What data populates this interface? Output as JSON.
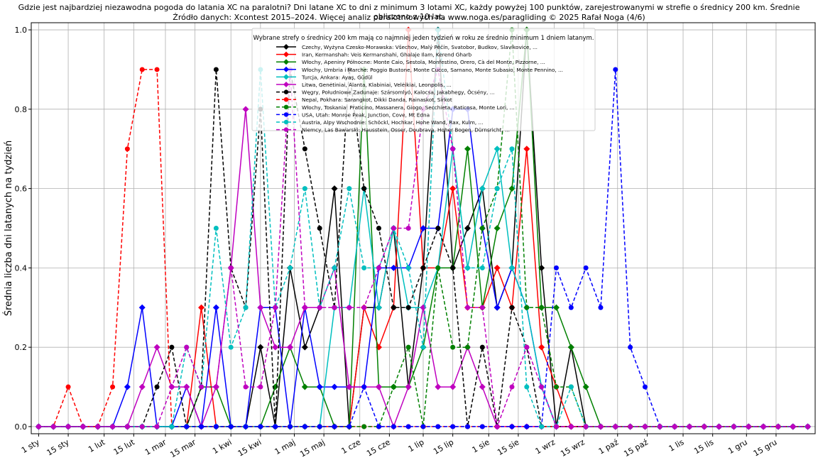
{
  "title_line1": "Gdzie jest najbardziej niezawodna pogoda do latania XC na paralotni? Dni latane XC to dni z minimum 3 lotami XC, każdy powyżej 100 punktów, zarejestrowanymi w strefie o średnicy 200 km. Średnie obliczono z 10 lat.",
  "title_line2": "Źródło danych: Xcontest 2015–2024. Więcej analiz paralotniowych na www.noga.es/paragliding © 2025 Rafał Noga (4/6)",
  "chart_data": {
    "type": "line",
    "ylabel": "Średnia liczba dni latanych na tydzień",
    "xlabel": "",
    "ylim": [
      0,
      1.0
    ],
    "yticks": [
      "0.0",
      "0.2",
      "0.4",
      "0.6",
      "0.8",
      "1.0"
    ],
    "grid": true,
    "legend_title": "Wybrane strefy o średnicy 200 km mają co najmniej jeden tydzień w roku ze średnio minimum 1 dniem latanym.",
    "legend_position": "top-center",
    "xtick_labels": [
      "1 sty",
      "15 sty",
      "1 lut",
      "15 lut",
      "1 mar",
      "15 mar",
      "1 kwi",
      "15 kwi",
      "1 maj",
      "15 maj",
      "1 cze",
      "15 cze",
      "1 lip",
      "15 lip",
      "1 sie",
      "15 sie",
      "1 wrz",
      "15 wrz",
      "1 paź",
      "15 paź",
      "1 lis",
      "15 lis",
      "1 gru",
      "15 gru"
    ],
    "x_weeks": [
      1,
      2,
      3,
      4,
      5,
      6,
      7,
      8,
      9,
      10,
      11,
      12,
      13,
      14,
      15,
      16,
      17,
      18,
      19,
      20,
      21,
      22,
      23,
      24,
      25,
      26,
      27,
      28,
      29,
      30,
      31,
      32,
      33,
      34,
      35,
      36,
      37,
      38,
      39,
      40,
      41,
      42,
      43,
      44,
      45,
      46,
      47,
      48,
      49,
      50,
      51,
      52,
      53
    ],
    "series": [
      {
        "name": "Czechy, Wyżyna Czesko-Morawska: Všechov, Malý Pěčín, Svatobor, Budkov, Slavíkovice, ...",
        "color": "#000000",
        "dash": false,
        "marker": "diamond",
        "values": [
          0,
          0,
          0,
          0,
          0,
          0,
          0,
          0,
          0,
          0,
          0,
          0,
          0,
          0,
          0,
          0.2,
          0,
          0.4,
          0.2,
          0.3,
          0.6,
          0,
          0.3,
          0.3,
          0.5,
          0.1,
          0.4,
          1.0,
          0.4,
          0.5,
          0.6,
          0.3,
          0.4,
          1.0,
          0.4,
          0,
          0.2,
          0,
          0,
          0,
          0,
          0,
          0,
          0,
          0,
          0,
          0,
          0,
          0,
          0,
          0,
          0,
          0
        ]
      },
      {
        "name": "Iran, Kermanshah: Veis Kermanshahi, Ghalaje Ilam, Kerend Gharb",
        "color": "#ff0000",
        "dash": false,
        "marker": "diamond",
        "values": [
          0,
          0,
          0,
          0,
          0,
          0,
          0,
          0,
          0,
          0,
          0,
          0.3,
          0,
          0,
          0,
          0,
          0,
          0,
          0,
          0,
          0,
          0,
          0.3,
          0.2,
          0.3,
          1.0,
          0.4,
          0.4,
          0.6,
          0.3,
          0.3,
          0.4,
          0.3,
          0.7,
          0.2,
          0.1,
          0,
          0,
          0,
          0,
          0,
          0,
          0,
          0,
          0,
          0,
          0,
          0,
          0,
          0,
          0,
          0,
          0
        ]
      },
      {
        "name": "Włochy, Apeniny Północne: Monte Caio, Sestola, Monfestino, Orero, Cà del Monte, Pizzorne, ...",
        "color": "#008000",
        "dash": false,
        "marker": "diamond",
        "values": [
          0,
          0,
          0,
          0,
          0,
          0,
          0,
          0,
          0,
          0,
          0,
          0.1,
          0.1,
          0,
          0,
          0,
          0.1,
          0.2,
          0.1,
          0.1,
          0,
          0,
          0.9,
          0.1,
          0.1,
          0.1,
          0.2,
          0.4,
          0.4,
          0.7,
          0.3,
          0.5,
          0.6,
          1.0,
          0.3,
          0.3,
          0.2,
          0.1,
          0,
          0,
          0,
          0,
          0,
          0,
          0,
          0,
          0,
          0,
          0,
          0,
          0,
          0,
          0
        ]
      },
      {
        "name": "Włochy, Umbria i Marche: Poggio Bustone, Monte Cucco, Sarnano, Monte Subasio, Monte Pennino, ...",
        "color": "#0000ff",
        "dash": false,
        "marker": "diamond",
        "values": [
          0,
          0,
          0,
          0,
          0,
          0,
          0.1,
          0.3,
          0,
          0,
          0.1,
          0,
          0.3,
          0,
          0,
          0.3,
          0.3,
          0,
          0.3,
          0.1,
          0.1,
          0.1,
          0.1,
          0.4,
          0.4,
          0.4,
          0.5,
          0.5,
          0.8,
          0.8,
          0.5,
          0.3,
          0.4,
          0.3,
          0.1,
          0,
          0,
          0,
          0,
          0,
          0,
          0,
          0,
          0,
          0,
          0,
          0,
          0,
          0,
          0,
          0,
          0,
          0
        ]
      },
      {
        "name": "Turcja, Ankara: Ayaş, Güdül",
        "color": "#00bfbf",
        "dash": false,
        "marker": "diamond",
        "values": [
          0,
          0,
          0,
          0,
          0,
          0,
          0,
          0,
          0,
          0,
          0,
          0,
          0,
          0,
          0,
          0,
          0,
          0,
          0,
          0,
          0.3,
          0.3,
          0.6,
          0.3,
          0.5,
          0.3,
          0.3,
          0.4,
          0.7,
          0.4,
          0.6,
          0.7,
          0.4,
          0.3,
          0.1,
          0,
          0,
          0,
          0,
          0,
          0,
          0,
          0,
          0,
          0,
          0,
          0,
          0,
          0,
          0,
          0,
          0,
          0
        ]
      },
      {
        "name": "Litwa, Genėtiniai, Alanta, Klabiniai, Velėikiai, Leonpolis, ...",
        "color": "#bf00bf",
        "dash": false,
        "marker": "diamond",
        "values": [
          0,
          0,
          0,
          0,
          0,
          0,
          0,
          0.1,
          0.2,
          0.1,
          0.1,
          0,
          0.1,
          0.4,
          0.8,
          0.3,
          0.2,
          0.2,
          0.3,
          0.3,
          0.4,
          0.1,
          0.1,
          0.1,
          0,
          0.1,
          0.3,
          0.1,
          0.1,
          0.2,
          0.1,
          0,
          0,
          0,
          0,
          0,
          0,
          0,
          0,
          0,
          0,
          0,
          0,
          0,
          0,
          0,
          0,
          0,
          0,
          0,
          0,
          0,
          0
        ]
      },
      {
        "name": "Węgry, Południowe Zadunaje: Szársomlyó, Kalocsa, Jakabhegy, Öcsény, ...",
        "color": "#000000",
        "dash": true,
        "marker": "circle",
        "values": [
          0,
          0,
          0,
          0,
          0,
          0,
          0,
          0,
          0.1,
          0.2,
          0,
          0.1,
          0.9,
          0.4,
          0.3,
          0.8,
          0,
          0.9,
          0.7,
          0.5,
          0.3,
          0.9,
          0.6,
          0.5,
          0.3,
          0.3,
          0.4,
          0.5,
          0.4,
          0,
          0.2,
          0,
          0.3,
          0.2,
          0,
          0,
          0,
          0,
          0,
          0,
          0,
          0,
          0,
          0,
          0,
          0,
          0,
          0,
          0,
          0,
          0,
          0,
          0
        ]
      },
      {
        "name": "Nepal, Pokhara: Sarangkot, Dikki Danda, Rainaskot, Sirkot",
        "color": "#ff0000",
        "dash": true,
        "marker": "circle",
        "values": [
          0,
          0,
          0.1,
          0,
          0,
          0.1,
          0.7,
          0.9,
          0.9,
          0,
          0,
          0,
          0,
          0,
          0,
          0,
          0,
          0,
          0,
          0,
          0,
          0,
          0,
          0,
          0,
          0,
          0,
          0,
          0,
          0,
          0,
          0,
          0,
          0,
          0,
          0,
          0,
          0,
          0,
          0,
          0,
          0,
          0,
          0,
          0,
          0,
          0,
          0,
          0,
          0,
          0,
          0,
          0
        ]
      },
      {
        "name": "Włochy, Toskania: Praticino, Massanera, Giogo, Secchieta, Raticosa, Monte Lori, ...",
        "color": "#008000",
        "dash": true,
        "marker": "circle",
        "values": [
          0,
          0,
          0,
          0,
          0,
          0,
          0,
          0,
          0,
          0,
          0,
          0,
          0,
          0,
          0,
          0,
          0,
          0,
          0,
          0,
          0,
          0,
          0,
          0,
          0.1,
          0.2,
          0,
          0.4,
          0.2,
          0.2,
          0.5,
          0.6,
          1.0,
          0.3,
          0.3,
          0.1,
          0.1,
          0,
          0,
          0,
          0,
          0,
          0,
          0,
          0,
          0,
          0,
          0,
          0,
          0,
          0,
          0,
          0
        ]
      },
      {
        "name": "USA, Utah: Monroe Peak, Junction, Cove, Mt Edna",
        "color": "#0000ff",
        "dash": true,
        "marker": "circle",
        "values": [
          0,
          0,
          0,
          0,
          0,
          0,
          0,
          0,
          0,
          0,
          0,
          0,
          0,
          0,
          0,
          0,
          0,
          0,
          0,
          0,
          0,
          0,
          0.1,
          0,
          0,
          0,
          0,
          0,
          0,
          0,
          0,
          0,
          0,
          0,
          0,
          0.4,
          0.3,
          0.4,
          0.3,
          0.9,
          0.2,
          0.1,
          0,
          0,
          0,
          0,
          0,
          0,
          0,
          0,
          0,
          0,
          0
        ]
      },
      {
        "name": "Austria, Alpy Wschodnie: Schöckl, Hochkar, Hohe Wand, Rax, Kulm, ...",
        "color": "#00bfbf",
        "dash": true,
        "marker": "circle",
        "values": [
          0,
          0,
          0,
          0,
          0,
          0,
          0,
          0,
          0,
          0,
          0.2,
          0.1,
          0.5,
          0.2,
          0.3,
          0.9,
          0.3,
          0.4,
          0.6,
          0.3,
          0.4,
          0.6,
          0.4,
          0.4,
          0.5,
          0.4,
          0.2,
          1.0,
          0.7,
          0.4,
          0.4,
          0.6,
          0.7,
          0.1,
          0,
          0,
          0.1,
          0,
          0,
          0,
          0,
          0,
          0,
          0,
          0,
          0,
          0,
          0,
          0,
          0,
          0,
          0,
          0
        ]
      },
      {
        "name": "Niemcy, Las Bawarski: Hausstein, Osser, Doubrava, Hoher Bogen, Dürnsricht, ...",
        "color": "#bf00bf",
        "dash": true,
        "marker": "circle",
        "values": [
          0,
          0,
          0,
          0,
          0,
          0,
          0,
          0,
          0,
          0.1,
          0.2,
          0.1,
          0.1,
          0.4,
          0.1,
          0.1,
          0.3,
          0.9,
          0.3,
          0.3,
          0.3,
          0.3,
          0.3,
          0.4,
          0.5,
          0.5,
          0.8,
          0.9,
          0.7,
          0.3,
          0.3,
          0,
          0.1,
          0.2,
          0.1,
          0,
          0,
          0,
          0,
          0,
          0,
          0,
          0,
          0,
          0,
          0,
          0,
          0,
          0,
          0,
          0,
          0,
          0
        ]
      }
    ]
  }
}
